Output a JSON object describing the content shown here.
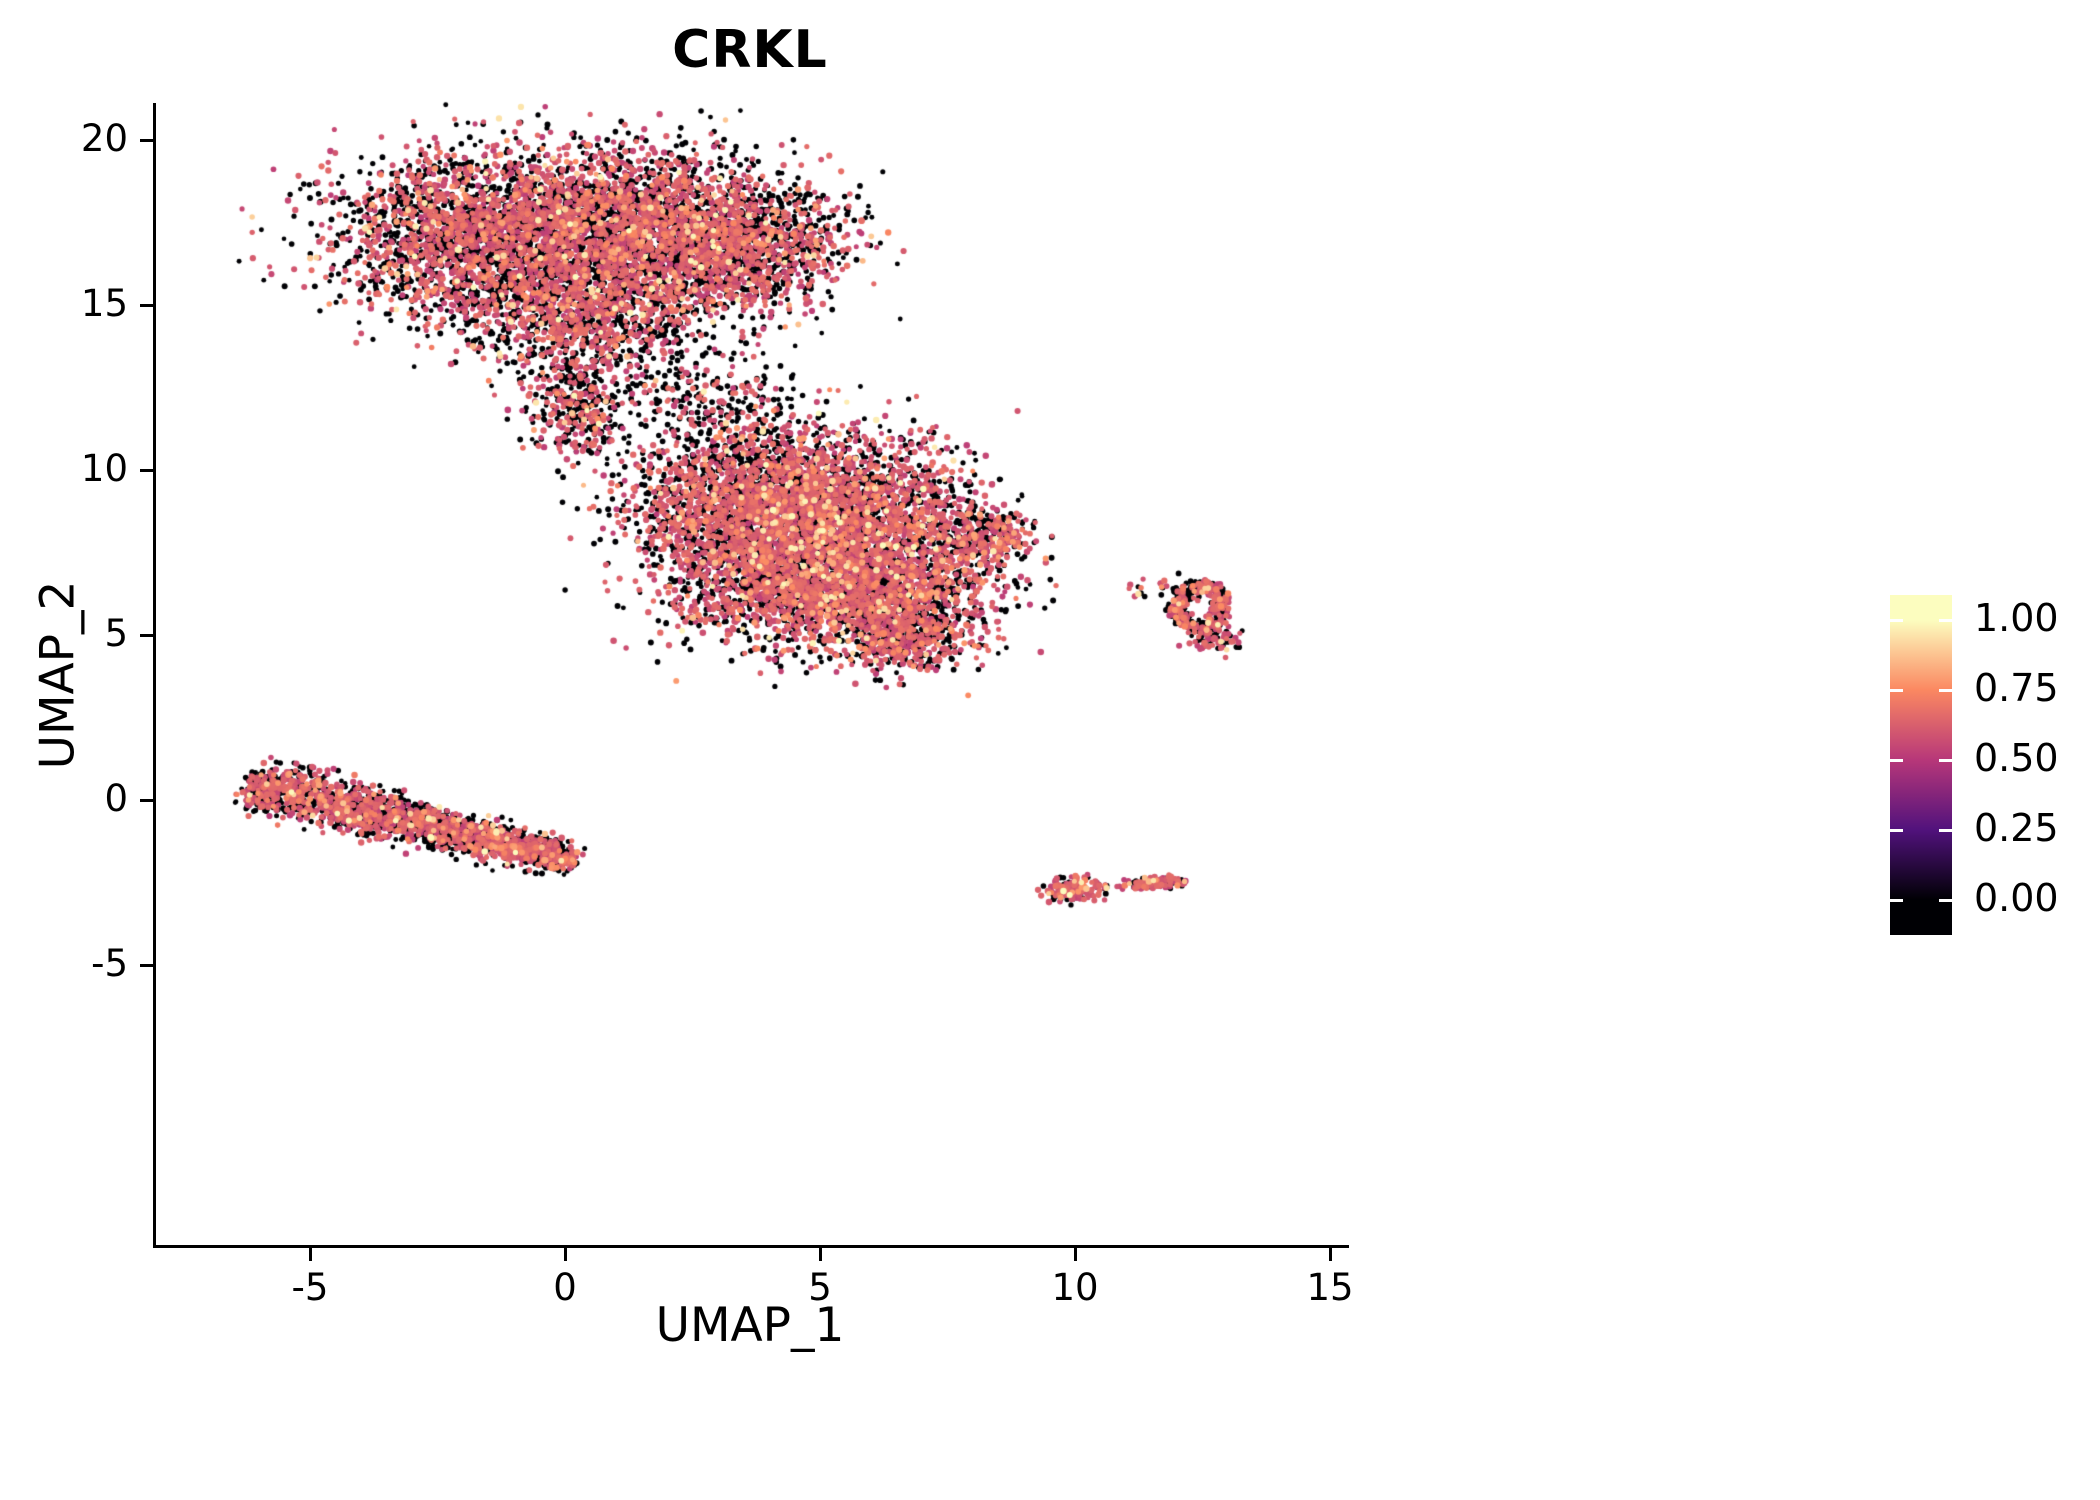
{
  "title": "CRKL",
  "colors": {
    "background": "#FFFFFF",
    "axis": "#000000",
    "text": "#000000"
  },
  "chart_data": {
    "type": "scatter",
    "title": "CRKL",
    "xlabel": "UMAP_1",
    "ylabel": "UMAP_2",
    "x_tick_values": [
      -5,
      0,
      5,
      10,
      15
    ],
    "x_tick_labels": [
      "-5",
      "0",
      "5",
      "10",
      "15"
    ],
    "y_tick_values": [
      20,
      15,
      10,
      5,
      0,
      -5
    ],
    "y_tick_labels": [
      "20",
      "15",
      "10",
      "5",
      "0",
      "-5"
    ],
    "xlim": [
      -8,
      15.3
    ],
    "ylim": [
      -13.5,
      21.1
    ],
    "grid": false,
    "legend": {
      "position": "right",
      "tick_labels": [
        "1.00",
        "0.75",
        "0.50",
        "0.25",
        "0.00"
      ],
      "tick_values": [
        1,
        0.75,
        0.5,
        0.25,
        0
      ]
    },
    "colormap": [
      [
        0,
        "#000004"
      ],
      [
        0.25,
        "#51127C"
      ],
      [
        0.5,
        "#B73779"
      ],
      [
        0.75,
        "#FB8861"
      ],
      [
        1,
        "#FCFDBF"
      ]
    ],
    "seed": 12345,
    "expression_mix": {
      "mid_low": 0.86,
      "mid_low_min": 0.52,
      "mid_low_span": 0.16,
      "high": 0.96,
      "high_min": 0.68,
      "high_span": 0.14,
      "top_min": 0.85,
      "top_span": 0.15
    },
    "clusters": [
      {
        "name": "upper-left-lobe",
        "type": "gauss",
        "cx": -1.6,
        "cy": 17.0,
        "sx": 1.5,
        "sy": 1.3,
        "n": 2600,
        "frac_zero": 0.5
      },
      {
        "name": "upper-mid-lobe",
        "type": "gauss",
        "cx": 1.2,
        "cy": 17.4,
        "sx": 1.3,
        "sy": 1.2,
        "n": 2200,
        "frac_zero": 0.5
      },
      {
        "name": "upper-right-lobe",
        "type": "gauss",
        "cx": 3.3,
        "cy": 16.8,
        "sx": 1.1,
        "sy": 1.1,
        "n": 1500,
        "frac_zero": 0.5
      },
      {
        "name": "upper-lower-mid",
        "type": "gauss",
        "cx": 0.4,
        "cy": 14.6,
        "sx": 1.2,
        "sy": 0.9,
        "n": 900,
        "frac_zero": 0.52
      },
      {
        "name": "upper-neck",
        "type": "gauss",
        "cx": 0.2,
        "cy": 12.0,
        "sx": 0.5,
        "sy": 0.8,
        "n": 380,
        "frac_zero": 0.5
      },
      {
        "name": "bridge-right",
        "type": "gauss",
        "cx": 2.6,
        "cy": 12.4,
        "sx": 0.9,
        "sy": 0.8,
        "n": 220,
        "frac_zero": 0.72
      },
      {
        "name": "bridge-mid",
        "type": "gauss",
        "cx": 3.4,
        "cy": 10.9,
        "sx": 0.8,
        "sy": 0.7,
        "n": 170,
        "frac_zero": 0.7
      },
      {
        "name": "center-nw",
        "type": "gauss",
        "cx": 3.6,
        "cy": 8.9,
        "sx": 1.2,
        "sy": 1.1,
        "n": 1800,
        "frac_zero": 0.42
      },
      {
        "name": "center-ne",
        "type": "gauss",
        "cx": 5.5,
        "cy": 8.7,
        "sx": 1.3,
        "sy": 1.2,
        "n": 2000,
        "frac_zero": 0.42
      },
      {
        "name": "center-sw",
        "type": "gauss",
        "cx": 4.4,
        "cy": 6.6,
        "sx": 1.2,
        "sy": 1.0,
        "n": 1500,
        "frac_zero": 0.44
      },
      {
        "name": "center-se",
        "type": "gauss",
        "cx": 6.3,
        "cy": 6.3,
        "sx": 1.1,
        "sy": 1.0,
        "n": 1300,
        "frac_zero": 0.42
      },
      {
        "name": "center-right-nub",
        "type": "gauss",
        "cx": 8.15,
        "cy": 7.95,
        "sx": 0.5,
        "sy": 0.45,
        "n": 300,
        "frac_zero": 0.45
      },
      {
        "name": "center-bottom-tail",
        "type": "gauss",
        "cx": 6.6,
        "cy": 4.9,
        "sx": 0.7,
        "sy": 0.55,
        "n": 420,
        "frac_zero": 0.45
      },
      {
        "name": "right-ring",
        "type": "ring",
        "cx": 12.45,
        "cy": 5.85,
        "rx": 0.55,
        "ry": 0.8,
        "inner": 0.4,
        "n": 380,
        "frac_zero": 0.45
      },
      {
        "name": "right-ring-tail",
        "type": "gauss",
        "cx": 12.7,
        "cy": 4.85,
        "sx": 0.22,
        "sy": 0.18,
        "n": 70,
        "frac_zero": 0.4
      },
      {
        "name": "right-ring-outliers",
        "type": "gauss",
        "cx": 11.45,
        "cy": 6.5,
        "sx": 0.35,
        "sy": 0.18,
        "n": 22,
        "frac_zero": 0.6
      },
      {
        "name": "lower-left-strip",
        "type": "strip",
        "x1": -6.2,
        "y1": 0.5,
        "x2": 0.2,
        "y2": -1.85,
        "spread": 0.34,
        "n": 2300,
        "frac_zero": 0.5
      },
      {
        "name": "bottom-small-1",
        "type": "gauss",
        "cx": 9.95,
        "cy": -2.7,
        "sx": 0.26,
        "sy": 0.17,
        "n": 170,
        "frac_zero": 0.32
      },
      {
        "name": "bottom-small-dot",
        "type": "gauss",
        "cx": 10.55,
        "cy": -2.62,
        "sx": 0.07,
        "sy": 0.05,
        "n": 9,
        "frac_zero": 0.5
      },
      {
        "name": "bottom-small-2",
        "type": "gauss",
        "cx": 11.35,
        "cy": -2.55,
        "sx": 0.17,
        "sy": 0.08,
        "n": 55,
        "frac_zero": 0.35
      },
      {
        "name": "bottom-small-3",
        "type": "gauss",
        "cx": 11.8,
        "cy": -2.48,
        "sx": 0.22,
        "sy": 0.09,
        "n": 70,
        "frac_zero": 0.35
      }
    ]
  }
}
